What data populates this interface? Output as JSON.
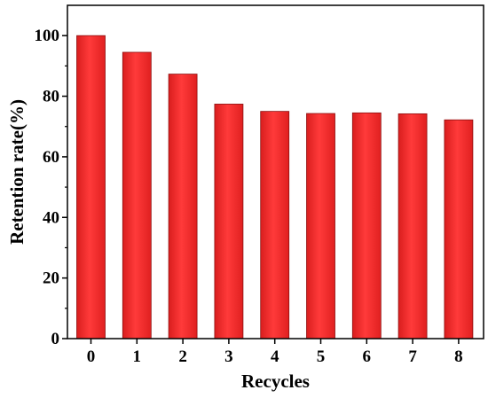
{
  "chart_data": {
    "type": "bar",
    "categories": [
      "0",
      "1",
      "2",
      "3",
      "4",
      "5",
      "6",
      "7",
      "8"
    ],
    "values": [
      100,
      94.5,
      87.3,
      77.4,
      75.0,
      74.3,
      74.5,
      74.2,
      72.2
    ],
    "xlabel": "Recycles",
    "ylabel": "Retention rate(%)",
    "ylim": [
      0,
      110
    ],
    "yticks": [
      "0",
      "20",
      "40",
      "60",
      "80",
      "100"
    ],
    "grid": false,
    "legend": "none",
    "bar_color": "#ff2e2e",
    "bar_edge_color": "#8c1010"
  }
}
